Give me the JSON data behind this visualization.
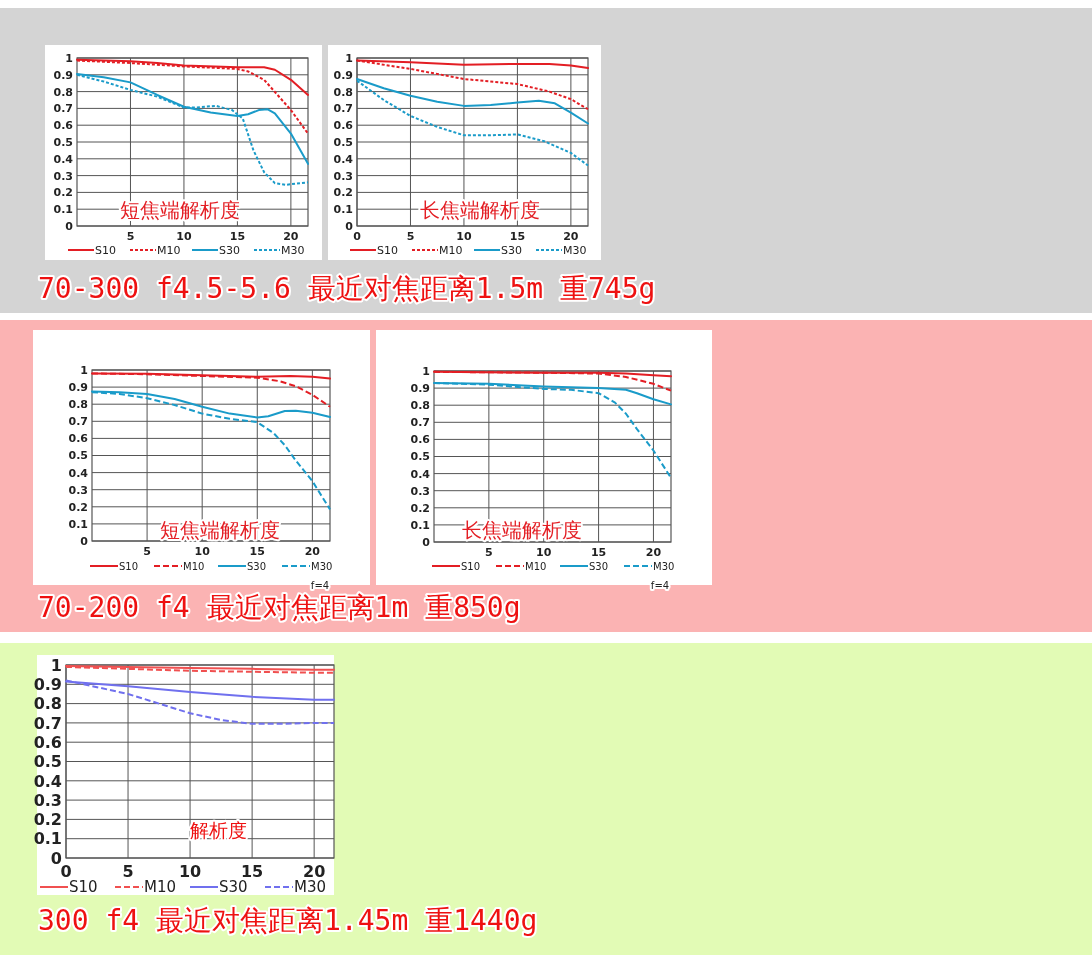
{
  "chart_data": [
    {
      "type": "line",
      "annotations": [
        "短焦端解析度",
        "70-300 f4.5-5.6 最近对焦距离1.5m 重745g"
      ],
      "xlim": [
        0,
        21.6
      ],
      "ylim": [
        0,
        1
      ],
      "xticks": [
        5,
        10,
        15,
        20
      ],
      "yticks": [
        0,
        0.1,
        0.2,
        0.3,
        0.4,
        0.5,
        0.6,
        0.7,
        0.8,
        0.9,
        1
      ],
      "grid": true,
      "legend": "bottom",
      "series": [
        {
          "name": "S10",
          "color": "#e31e24",
          "line_style": "solid",
          "x": [
            0,
            5,
            7.5,
            10,
            15,
            17.5,
            18.5,
            20,
            21.6
          ],
          "values": [
            0.99,
            0.98,
            0.97,
            0.955,
            0.945,
            0.945,
            0.93,
            0.87,
            0.78
          ]
        },
        {
          "name": "M10",
          "color": "#e31e24",
          "line_style": "dotted",
          "x": [
            0,
            5,
            10,
            15,
            16,
            17.5,
            20,
            21.6
          ],
          "values": [
            0.985,
            0.97,
            0.95,
            0.935,
            0.92,
            0.87,
            0.69,
            0.55
          ]
        },
        {
          "name": "S30",
          "color": "#1a9bc9",
          "line_style": "solid",
          "x": [
            0,
            2.5,
            5,
            7.5,
            10,
            12.5,
            15,
            16,
            17,
            17.8,
            18.5,
            20,
            21.6
          ],
          "values": [
            0.905,
            0.885,
            0.855,
            0.78,
            0.71,
            0.675,
            0.655,
            0.665,
            0.69,
            0.695,
            0.67,
            0.55,
            0.37
          ]
        },
        {
          "name": "M30",
          "color": "#1a9bc9",
          "line_style": "dotted",
          "x": [
            0,
            2.5,
            5,
            7.5,
            10,
            11,
            13,
            14.5,
            15.5,
            16.5,
            17.5,
            18.5,
            19.5,
            21.6
          ],
          "values": [
            0.9,
            0.86,
            0.81,
            0.77,
            0.705,
            0.705,
            0.715,
            0.69,
            0.64,
            0.45,
            0.32,
            0.255,
            0.245,
            0.26
          ]
        }
      ]
    },
    {
      "type": "line",
      "annotations": [
        "长焦端解析度"
      ],
      "xlim": [
        0,
        21.6
      ],
      "ylim": [
        0,
        1
      ],
      "xticks": [
        0,
        5,
        10,
        15,
        20
      ],
      "yticks": [
        0,
        0.1,
        0.2,
        0.3,
        0.4,
        0.5,
        0.6,
        0.7,
        0.8,
        0.9,
        1
      ],
      "grid": true,
      "legend": "bottom",
      "series": [
        {
          "name": "S10",
          "color": "#e31e24",
          "line_style": "solid",
          "x": [
            0,
            5,
            10,
            15,
            18,
            20,
            21.6
          ],
          "values": [
            0.985,
            0.975,
            0.96,
            0.965,
            0.965,
            0.955,
            0.94
          ]
        },
        {
          "name": "M10",
          "color": "#e31e24",
          "line_style": "dotted",
          "x": [
            0,
            5,
            10,
            15,
            18,
            20,
            21.6
          ],
          "values": [
            0.985,
            0.935,
            0.875,
            0.845,
            0.8,
            0.755,
            0.695
          ]
        },
        {
          "name": "S30",
          "color": "#1a9bc9",
          "line_style": "solid",
          "x": [
            0,
            2.5,
            5,
            7.5,
            10,
            12.5,
            15,
            17,
            18.5,
            20,
            21.6
          ],
          "values": [
            0.875,
            0.82,
            0.775,
            0.74,
            0.715,
            0.72,
            0.735,
            0.745,
            0.73,
            0.675,
            0.61
          ]
        },
        {
          "name": "M30",
          "color": "#1a9bc9",
          "line_style": "dotted",
          "x": [
            0,
            2.5,
            5,
            7.5,
            10,
            12.5,
            15,
            17.5,
            20,
            21.6
          ],
          "values": [
            0.865,
            0.75,
            0.655,
            0.59,
            0.54,
            0.54,
            0.545,
            0.505,
            0.435,
            0.36
          ]
        }
      ]
    },
    {
      "type": "line",
      "annotations": [
        "短焦端解析度",
        "f=4",
        "70-200 f4  最近对焦距离1m 重850g"
      ],
      "xlim": [
        0,
        21.6
      ],
      "ylim": [
        0,
        1
      ],
      "xticks": [
        5,
        10,
        15,
        20
      ],
      "yticks": [
        0,
        0.1,
        0.2,
        0.3,
        0.4,
        0.5,
        0.6,
        0.7,
        0.8,
        0.9,
        1
      ],
      "grid": true,
      "legend": "bottom",
      "series": [
        {
          "name": "S10",
          "color": "#e31e24",
          "line_style": "solid",
          "x": [
            0,
            5,
            10,
            15,
            18,
            20,
            21.6
          ],
          "values": [
            0.98,
            0.978,
            0.97,
            0.96,
            0.965,
            0.96,
            0.95
          ]
        },
        {
          "name": "M10",
          "color": "#e31e24",
          "line_style": "dashed",
          "x": [
            0,
            5,
            10,
            15,
            17,
            18.5,
            20,
            21.6
          ],
          "values": [
            0.98,
            0.975,
            0.965,
            0.955,
            0.935,
            0.905,
            0.855,
            0.785
          ]
        },
        {
          "name": "S30",
          "color": "#1a9bc9",
          "line_style": "solid",
          "x": [
            0,
            2.5,
            5,
            7.5,
            10,
            12.5,
            15,
            16,
            17.5,
            18.5,
            20,
            21.6
          ],
          "values": [
            0.875,
            0.87,
            0.86,
            0.83,
            0.785,
            0.745,
            0.722,
            0.73,
            0.76,
            0.762,
            0.75,
            0.725
          ]
        },
        {
          "name": "M30",
          "color": "#1a9bc9",
          "line_style": "dashed",
          "x": [
            0,
            2.5,
            5,
            7.5,
            10,
            12.5,
            15,
            16.5,
            17.5,
            18.5,
            20,
            21.6
          ],
          "values": [
            0.87,
            0.86,
            0.835,
            0.795,
            0.745,
            0.715,
            0.695,
            0.63,
            0.56,
            0.47,
            0.35,
            0.185
          ]
        }
      ]
    },
    {
      "type": "line",
      "annotations": [
        "长焦端解析度",
        "f=4"
      ],
      "xlim": [
        0,
        21.6
      ],
      "ylim": [
        0,
        1
      ],
      "xticks": [
        5,
        10,
        15,
        20
      ],
      "yticks": [
        0,
        0.1,
        0.2,
        0.3,
        0.4,
        0.5,
        0.6,
        0.7,
        0.8,
        0.9,
        1
      ],
      "grid": true,
      "legend": "bottom",
      "series": [
        {
          "name": "S10",
          "color": "#e31e24",
          "line_style": "solid",
          "x": [
            0,
            10,
            15,
            17.5,
            20,
            21.6
          ],
          "values": [
            0.995,
            0.99,
            0.99,
            0.985,
            0.975,
            0.97
          ]
        },
        {
          "name": "M10",
          "color": "#e31e24",
          "line_style": "dashed",
          "x": [
            0,
            10,
            15,
            17.5,
            20,
            21.6
          ],
          "values": [
            0.995,
            0.99,
            0.985,
            0.965,
            0.925,
            0.885
          ]
        },
        {
          "name": "S30",
          "color": "#1a9bc9",
          "line_style": "solid",
          "x": [
            0,
            5,
            10,
            15,
            17.5,
            18.5,
            20,
            21.6
          ],
          "values": [
            0.93,
            0.925,
            0.91,
            0.9,
            0.89,
            0.87,
            0.835,
            0.805
          ]
        },
        {
          "name": "M30",
          "color": "#1a9bc9",
          "line_style": "dashed",
          "x": [
            0,
            5,
            10,
            12.5,
            15,
            16.5,
            17.5,
            18.5,
            20,
            21.6
          ],
          "values": [
            0.93,
            0.92,
            0.895,
            0.89,
            0.87,
            0.815,
            0.75,
            0.66,
            0.535,
            0.375
          ]
        }
      ]
    },
    {
      "type": "line",
      "annotations": [
        "解析度",
        "300 f4 最近对焦距离1.45m 重1440g"
      ],
      "xlim": [
        0,
        21.6
      ],
      "ylim": [
        0,
        1
      ],
      "xticks": [
        0,
        5,
        10,
        15,
        20
      ],
      "yticks": [
        0,
        0.1,
        0.2,
        0.3,
        0.4,
        0.5,
        0.6,
        0.7,
        0.8,
        0.9,
        1
      ],
      "grid": true,
      "legend": "bottom",
      "series": [
        {
          "name": "S10",
          "color": "#f05050",
          "line_style": "solid",
          "x": [
            0,
            5,
            10,
            15,
            20,
            21.6
          ],
          "values": [
            0.995,
            0.99,
            0.985,
            0.98,
            0.975,
            0.975
          ]
        },
        {
          "name": "M10",
          "color": "#f05050",
          "line_style": "dashed",
          "x": [
            0,
            5,
            10,
            15,
            20,
            21.6
          ],
          "values": [
            0.99,
            0.98,
            0.97,
            0.965,
            0.96,
            0.96
          ]
        },
        {
          "name": "S30",
          "color": "#7070ee",
          "line_style": "solid",
          "x": [
            0,
            5,
            10,
            15,
            20,
            21.6
          ],
          "values": [
            0.915,
            0.89,
            0.86,
            0.835,
            0.82,
            0.82
          ]
        },
        {
          "name": "M30",
          "color": "#7070ee",
          "line_style": "dashed",
          "x": [
            0,
            2.5,
            5,
            7.5,
            10,
            12.5,
            15,
            17.5,
            20,
            21.6
          ],
          "values": [
            0.92,
            0.885,
            0.85,
            0.8,
            0.75,
            0.715,
            0.695,
            0.695,
            0.7,
            0.7
          ]
        }
      ]
    }
  ]
}
